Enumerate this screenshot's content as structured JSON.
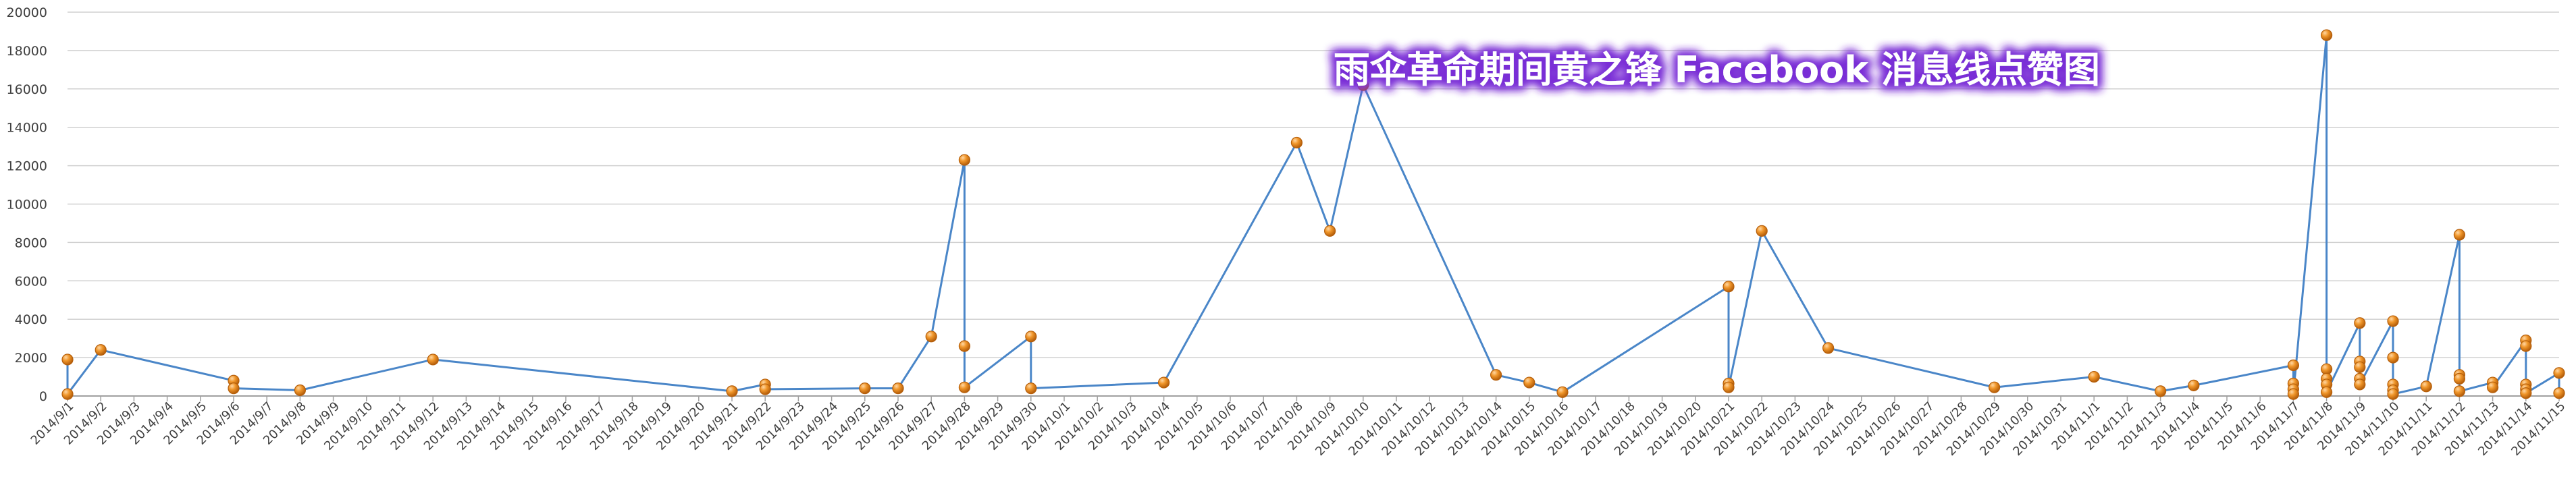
{
  "chart_data": {
    "type": "line",
    "title": "雨伞革命期间黄之锋 Facebook 消息线点赞图",
    "xlabel": "",
    "ylabel": "",
    "ylim": [
      0,
      20000
    ],
    "yticks": [
      0,
      2000,
      4000,
      6000,
      8000,
      10000,
      12000,
      14000,
      16000,
      18000,
      20000
    ],
    "grid": "horizontal",
    "colors": {
      "line": "#4a86c8",
      "marker": "#e88a1f",
      "marker_edge": "#b55e0a",
      "grid": "#d0d0d0",
      "title_glow": "#7a2fd6"
    },
    "categories": [
      "2014/9/1",
      "2014/9/2",
      "2014/9/3",
      "2014/9/4",
      "2014/9/5",
      "2014/9/6",
      "2014/9/7",
      "2014/9/8",
      "2014/9/9",
      "2014/9/10",
      "2014/9/11",
      "2014/9/12",
      "2014/9/13",
      "2014/9/14",
      "2014/9/15",
      "2014/9/16",
      "2014/9/17",
      "2014/9/18",
      "2014/9/19",
      "2014/9/20",
      "2014/9/21",
      "2014/9/22",
      "2014/9/23",
      "2014/9/24",
      "2014/9/25",
      "2014/9/26",
      "2014/9/27",
      "2014/9/28",
      "2014/9/29",
      "2014/9/30",
      "2014/10/1",
      "2014/10/2",
      "2014/10/3",
      "2014/10/4",
      "2014/10/5",
      "2014/10/6",
      "2014/10/7",
      "2014/10/8",
      "2014/10/9",
      "2014/10/10",
      "2014/10/11",
      "2014/10/12",
      "2014/10/13",
      "2014/10/14",
      "2014/10/15",
      "2014/10/16",
      "2014/10/17",
      "2014/10/18",
      "2014/10/19",
      "2014/10/20",
      "2014/10/21",
      "2014/10/22",
      "2014/10/23",
      "2014/10/24",
      "2014/10/25",
      "2014/10/26",
      "2014/10/27",
      "2014/10/28",
      "2014/10/29",
      "2014/10/30",
      "2014/10/31",
      "2014/11/1",
      "2014/11/2",
      "2014/11/3",
      "2014/11/4",
      "2014/11/5",
      "2014/11/6",
      "2014/11/7",
      "2014/11/8",
      "2014/11/9",
      "2014/11/10",
      "2014/11/11",
      "2014/11/12",
      "2014/11/13",
      "2014/11/14",
      "2014/11/15"
    ],
    "points": [
      {
        "x": "2014/9/1",
        "y": 1900
      },
      {
        "x": "2014/9/1",
        "y": 100
      },
      {
        "x": "2014/9/2",
        "y": 2400
      },
      {
        "x": "2014/9/6",
        "y": 800
      },
      {
        "x": "2014/9/6",
        "y": 400
      },
      {
        "x": "2014/9/8",
        "y": 300
      },
      {
        "x": "2014/9/12",
        "y": 1900
      },
      {
        "x": "2014/9/21",
        "y": 250
      },
      {
        "x": "2014/9/22",
        "y": 600
      },
      {
        "x": "2014/9/22",
        "y": 350
      },
      {
        "x": "2014/9/25",
        "y": 400
      },
      {
        "x": "2014/9/26",
        "y": 400
      },
      {
        "x": "2014/9/27",
        "y": 3100
      },
      {
        "x": "2014/9/28",
        "y": 12300
      },
      {
        "x": "2014/9/28",
        "y": 2600
      },
      {
        "x": "2014/9/28",
        "y": 450
      },
      {
        "x": "2014/9/30",
        "y": 3100
      },
      {
        "x": "2014/9/30",
        "y": 400
      },
      {
        "x": "2014/10/4",
        "y": 700
      },
      {
        "x": "2014/10/8",
        "y": 13200
      },
      {
        "x": "2014/10/9",
        "y": 8600
      },
      {
        "x": "2014/10/10",
        "y": 16200
      },
      {
        "x": "2014/10/14",
        "y": 1100
      },
      {
        "x": "2014/10/15",
        "y": 700
      },
      {
        "x": "2014/10/16",
        "y": 200
      },
      {
        "x": "2014/10/21",
        "y": 5700
      },
      {
        "x": "2014/10/21",
        "y": 650
      },
      {
        "x": "2014/10/21",
        "y": 450
      },
      {
        "x": "2014/10/22",
        "y": 8600
      },
      {
        "x": "2014/10/24",
        "y": 2500
      },
      {
        "x": "2014/10/29",
        "y": 450
      },
      {
        "x": "2014/11/1",
        "y": 1000
      },
      {
        "x": "2014/11/3",
        "y": 250
      },
      {
        "x": "2014/11/4",
        "y": 550
      },
      {
        "x": "2014/11/7",
        "y": 1600
      },
      {
        "x": "2014/11/7",
        "y": 650
      },
      {
        "x": "2014/11/7",
        "y": 350
      },
      {
        "x": "2014/11/7",
        "y": 100
      },
      {
        "x": "2014/11/8",
        "y": 18800
      },
      {
        "x": "2014/11/8",
        "y": 1400
      },
      {
        "x": "2014/11/8",
        "y": 900
      },
      {
        "x": "2014/11/8",
        "y": 600
      },
      {
        "x": "2014/11/8",
        "y": 200
      },
      {
        "x": "2014/11/9",
        "y": 3800
      },
      {
        "x": "2014/11/9",
        "y": 1800
      },
      {
        "x": "2014/11/9",
        "y": 1500
      },
      {
        "x": "2014/11/9",
        "y": 900
      },
      {
        "x": "2014/11/9",
        "y": 600
      },
      {
        "x": "2014/11/10",
        "y": 3900
      },
      {
        "x": "2014/11/10",
        "y": 2000
      },
      {
        "x": "2014/11/10",
        "y": 600
      },
      {
        "x": "2014/11/10",
        "y": 300
      },
      {
        "x": "2014/11/10",
        "y": 100
      },
      {
        "x": "2014/11/11",
        "y": 500
      },
      {
        "x": "2014/11/12",
        "y": 8400
      },
      {
        "x": "2014/11/12",
        "y": 1100
      },
      {
        "x": "2014/11/12",
        "y": 900
      },
      {
        "x": "2014/11/12",
        "y": 250
      },
      {
        "x": "2014/11/13",
        "y": 700
      },
      {
        "x": "2014/11/13",
        "y": 450
      },
      {
        "x": "2014/11/14",
        "y": 2900
      },
      {
        "x": "2014/11/14",
        "y": 2600
      },
      {
        "x": "2014/11/14",
        "y": 600
      },
      {
        "x": "2014/11/14",
        "y": 350
      },
      {
        "x": "2014/11/14",
        "y": 150
      },
      {
        "x": "2014/11/15",
        "y": 1200
      },
      {
        "x": "2014/11/15",
        "y": 150
      }
    ]
  }
}
